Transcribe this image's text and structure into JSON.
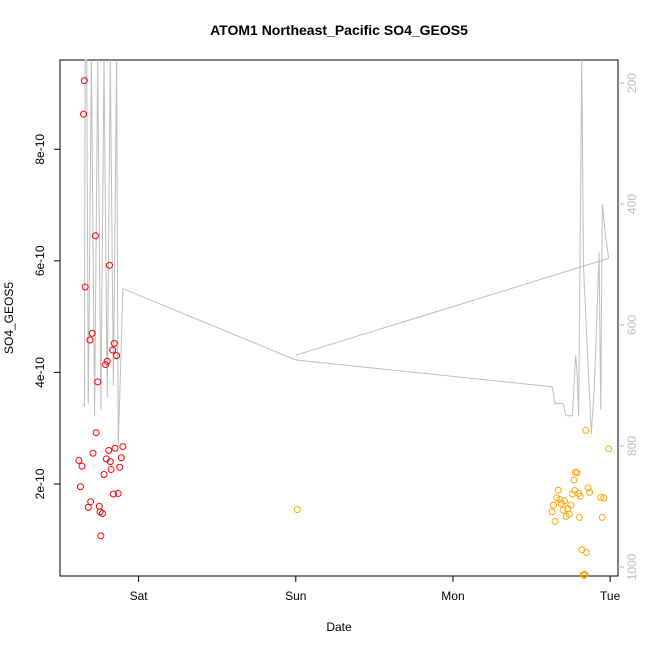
{
  "chart_data": {
    "type": "scatter",
    "title": "ATOM1 Northeast_Pacific SO4_GEOS5",
    "xlabel": "Date",
    "ylabel": "SO4_GEOS5",
    "x_ticks": [
      "Sat",
      "Sun",
      "Mon",
      "Tue"
    ],
    "y_ticks": [
      "2e-10",
      "4e-10",
      "6e-10",
      "8e-10"
    ],
    "y2_ticks": [
      "200",
      "400",
      "600",
      "800",
      "1000"
    ],
    "xlim": [
      -0.5,
      3.05
    ],
    "ylim": [
      3.5e-11,
      9.6e-10
    ],
    "y2lim": [
      1015,
      162
    ],
    "y2_reversed": true,
    "grid": false,
    "colors": {
      "series1": "#ff0000",
      "series2": "#ffa500",
      "pressure_line": "#bebebe",
      "right_axis": "#bdbdbd"
    },
    "series": [
      {
        "color": "#ff0000",
        "points": [
          [
            -0.38,
            2.42e-10
          ],
          [
            -0.37,
            1.95e-10
          ],
          [
            -0.36,
            2.32e-10
          ],
          [
            -0.35,
            8.63e-10
          ],
          [
            -0.345,
            9.23e-10
          ],
          [
            -0.34,
            5.53e-10
          ],
          [
            -0.32,
            1.58e-10
          ],
          [
            -0.31,
            4.58e-10
          ],
          [
            -0.305,
            1.68e-10
          ],
          [
            -0.295,
            4.7e-10
          ],
          [
            -0.29,
            2.55e-10
          ],
          [
            -0.275,
            6.45e-10
          ],
          [
            -0.27,
            2.92e-10
          ],
          [
            -0.26,
            3.83e-10
          ],
          [
            -0.25,
            1.6e-10
          ],
          [
            -0.245,
            1.5e-10
          ],
          [
            -0.24,
            1.07e-10
          ],
          [
            -0.23,
            1.47e-10
          ],
          [
            -0.22,
            2.17e-10
          ],
          [
            -0.21,
            4.14e-10
          ],
          [
            -0.205,
            2.45e-10
          ],
          [
            -0.2,
            4.2e-10
          ],
          [
            -0.19,
            2.6e-10
          ],
          [
            -0.185,
            5.92e-10
          ],
          [
            -0.18,
            2.4e-10
          ],
          [
            -0.175,
            2.26e-10
          ],
          [
            -0.165,
            4.4e-10
          ],
          [
            -0.16,
            1.82e-10
          ],
          [
            -0.155,
            4.52e-10
          ],
          [
            -0.15,
            2.64e-10
          ],
          [
            -0.14,
            4.3e-10
          ],
          [
            -0.13,
            1.83e-10
          ],
          [
            -0.12,
            2.3e-10
          ],
          [
            -0.11,
            2.47e-10
          ],
          [
            -0.1,
            2.67e-10
          ]
        ]
      },
      {
        "color": "#ffa500",
        "points": [
          [
            1.01,
            1.54e-10
          ],
          [
            2.63,
            1.5e-10
          ],
          [
            2.64,
            1.62e-10
          ],
          [
            2.65,
            1.33e-10
          ],
          [
            2.66,
            1.75e-10
          ],
          [
            2.67,
            1.89e-10
          ],
          [
            2.68,
            1.72e-10
          ],
          [
            2.69,
            1.65e-10
          ],
          [
            2.7,
            1.53e-10
          ],
          [
            2.71,
            1.7e-10
          ],
          [
            2.72,
            1.42e-10
          ],
          [
            2.73,
            1.56e-10
          ],
          [
            2.74,
            1.46e-10
          ],
          [
            2.75,
            1.62e-10
          ],
          [
            2.76,
            1.82e-10
          ],
          [
            2.77,
            2.07e-10
          ],
          [
            2.775,
            1.88e-10
          ],
          [
            2.78,
            2.21e-10
          ],
          [
            2.79,
            2.2e-10
          ],
          [
            2.8,
            1.83e-10
          ],
          [
            2.805,
            1.4e-10
          ],
          [
            2.81,
            1.78e-10
          ],
          [
            2.82,
            8.2e-11
          ],
          [
            2.83,
            3.7e-11
          ],
          [
            2.835,
            3.6e-11
          ],
          [
            2.84,
            3.8e-11
          ],
          [
            2.845,
            2.96e-10
          ],
          [
            2.85,
            7.7e-11
          ],
          [
            2.86,
            1.93e-10
          ],
          [
            2.87,
            1.85e-10
          ],
          [
            2.94,
            1.76e-10
          ],
          [
            2.95,
            1.4e-10
          ],
          [
            2.96,
            1.75e-10
          ],
          [
            2.99,
            2.63e-10
          ]
        ]
      }
    ],
    "pressure_line": {
      "axis": "right",
      "points": [
        [
          -0.35,
          730
        ],
        [
          -0.345,
          735
        ],
        [
          -0.34,
          162
        ],
        [
          -0.33,
          162
        ],
        [
          -0.32,
          730
        ],
        [
          -0.3,
          162
        ],
        [
          -0.28,
          750
        ],
        [
          -0.26,
          162
        ],
        [
          -0.24,
          740
        ],
        [
          -0.22,
          162
        ],
        [
          -0.2,
          720
        ],
        [
          -0.18,
          162
        ],
        [
          -0.16,
          700
        ],
        [
          -0.14,
          162
        ],
        [
          -0.13,
          800
        ],
        [
          -0.12,
          720
        ],
        [
          -0.1,
          540
        ],
        [
          1.0,
          658
        ],
        [
          2.63,
          702
        ],
        [
          2.65,
          730
        ],
        [
          2.7,
          730
        ],
        [
          2.72,
          750
        ],
        [
          2.76,
          750
        ],
        [
          2.77,
          700
        ],
        [
          2.78,
          650
        ],
        [
          2.79,
          680
        ],
        [
          2.8,
          750
        ],
        [
          2.81,
          430
        ],
        [
          2.82,
          162
        ],
        [
          2.83,
          500
        ],
        [
          2.88,
          780
        ],
        [
          2.9,
          700
        ],
        [
          2.93,
          480
        ],
        [
          2.94,
          740
        ],
        [
          2.95,
          400
        ],
        [
          2.97,
          450
        ],
        [
          2.99,
          490
        ],
        [
          1.0,
          650
        ]
      ]
    }
  }
}
